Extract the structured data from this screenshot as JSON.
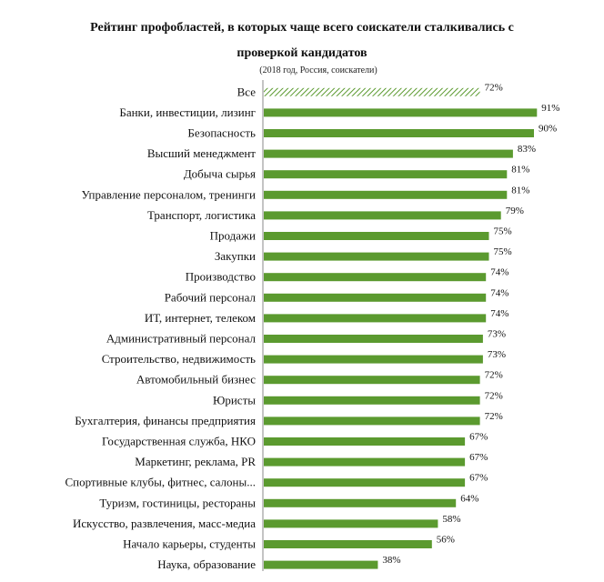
{
  "chart_data": {
    "type": "bar",
    "orientation": "horizontal",
    "title": "Рейтинг профобластей, в которых чаще всего соискатели сталкивались с проверкой кандидатов",
    "subtitle": "(2018 год, Россия, соискатели)",
    "categories": [
      "Все",
      "Банки, инвестиции, лизинг",
      "Безопасность",
      "Высший менеджмент",
      "Добыча сырья",
      "Управление персоналом, тренинги",
      "Транспорт, логистика",
      "Продажи",
      "Закупки",
      "Производство",
      "Рабочий персонал",
      "ИТ, интернет, телеком",
      "Административный персонал",
      "Строительство, недвижимость",
      "Автомобильный бизнес",
      "Юристы",
      "Бухгалтерия, финансы предприятия",
      "Государственная служба, НКО",
      "Маркетинг, реклама, PR",
      "Спортивные клубы, фитнес, салоны...",
      "Туризм, гостиницы, рестораны",
      "Искусство, развлечения, масс-медиа",
      "Начало карьеры, студенты",
      "Наука, образование"
    ],
    "values": [
      72,
      91,
      90,
      83,
      81,
      81,
      79,
      75,
      75,
      74,
      74,
      74,
      73,
      73,
      72,
      72,
      72,
      67,
      67,
      67,
      64,
      58,
      56,
      38
    ],
    "value_labels": [
      "72%",
      "91%",
      "90%",
      "83%",
      "81%",
      "81%",
      "79%",
      "75%",
      "75%",
      "74%",
      "74%",
      "74%",
      "73%",
      "73%",
      "72%",
      "72%",
      "72%",
      "67%",
      "67%",
      "67%",
      "64%",
      "58%",
      "56%",
      "38%"
    ],
    "highlight_first": true,
    "xlim": [
      0,
      100
    ],
    "grid": false,
    "legend": "none",
    "colors": {
      "bar": "#5b9a2f",
      "highlight": "#c9dcb8"
    }
  }
}
